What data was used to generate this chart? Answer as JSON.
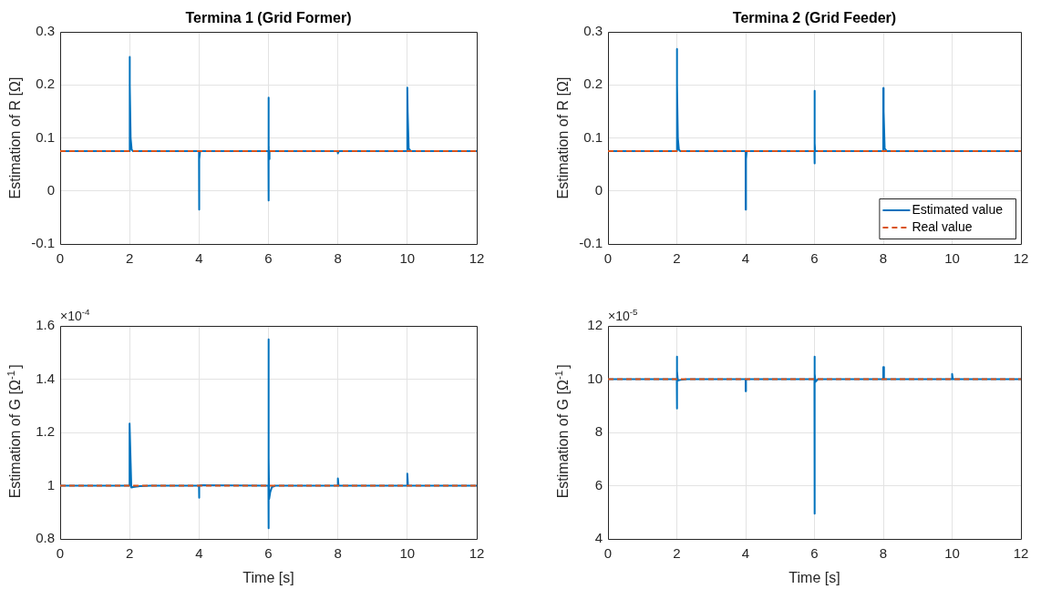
{
  "chart_data": [
    {
      "type": "line",
      "title": "Termina 1 (Grid Former)",
      "ylabel": "Estimation of R [Ω]",
      "xlim": [
        0,
        12
      ],
      "xticks": [
        0,
        2,
        4,
        6,
        8,
        10,
        12
      ],
      "ylim": [
        -0.1,
        0.3
      ],
      "yticks": [
        -0.1,
        0,
        0.1,
        0.2,
        0.3
      ],
      "grid": true,
      "legend": false,
      "marker": "none",
      "series": [
        {
          "color": "#0072bd",
          "line_style": "solid",
          "x": [
            0,
            1.999,
            2.0,
            2.01,
            2.03,
            2.06,
            2.1,
            3.999,
            4.0,
            4.01,
            4.03,
            5.999,
            6.0,
            6.005,
            6.01,
            6.02,
            6.03,
            6.06,
            7.99,
            8.0,
            8.03,
            9.999,
            10.0,
            10.01,
            10.04,
            10.1,
            12
          ],
          "values": [
            0.075,
            0.075,
            0.253,
            0.2,
            0.1,
            0.078,
            0.075,
            0.075,
            -0.035,
            0.06,
            0.075,
            0.075,
            0.176,
            -0.018,
            0.083,
            0.06,
            0.075,
            0.075,
            0.075,
            0.071,
            0.075,
            0.075,
            0.195,
            0.15,
            0.08,
            0.075,
            0.075
          ]
        },
        {
          "color": "#d95319",
          "line_style": "dashed",
          "x": [
            0,
            12
          ],
          "values": [
            0.075,
            0.075
          ]
        }
      ]
    },
    {
      "type": "line",
      "title": "Termina 2 (Grid Feeder)",
      "ylabel": "Estimation of R [Ω]",
      "xlim": [
        0,
        12
      ],
      "xticks": [
        0,
        2,
        4,
        6,
        8,
        10,
        12
      ],
      "ylim": [
        -0.1,
        0.3
      ],
      "yticks": [
        -0.1,
        0,
        0.1,
        0.2,
        0.3
      ],
      "grid": true,
      "legend": "bottom right",
      "marker": "none",
      "series": [
        {
          "name": "Estimated value",
          "color": "#0072bd",
          "line_style": "solid",
          "x": [
            0,
            1.999,
            2.0,
            2.01,
            2.03,
            2.06,
            2.1,
            3.999,
            4.0,
            4.01,
            4.03,
            5.999,
            6.0,
            6.005,
            6.01,
            6.02,
            6.05,
            7.999,
            8.0,
            8.01,
            8.04,
            8.1,
            12
          ],
          "values": [
            0.075,
            0.075,
            0.268,
            0.2,
            0.1,
            0.078,
            0.075,
            0.075,
            -0.035,
            0.06,
            0.075,
            0.075,
            0.189,
            0.052,
            0.09,
            0.075,
            0.075,
            0.075,
            0.194,
            0.15,
            0.08,
            0.075,
            0.075
          ]
        },
        {
          "name": "Real value",
          "color": "#d95319",
          "line_style": "dashed",
          "x": [
            0,
            12
          ],
          "values": [
            0.075,
            0.075
          ]
        }
      ]
    },
    {
      "type": "line",
      "ylabel": "Estimation of G [Ω$^{-1}$]",
      "xlabel": "Time [s]",
      "annotations": [
        "×10$^{-4}$"
      ],
      "xlim": [
        0,
        12
      ],
      "xticks": [
        0,
        2,
        4,
        6,
        8,
        10,
        12
      ],
      "ylim": [
        0.8,
        1.6
      ],
      "yticks": [
        0.8,
        1,
        1.2,
        1.4,
        1.6
      ],
      "grid": true,
      "legend": false,
      "marker": "none",
      "series": [
        {
          "color": "#0072bd",
          "line_style": "solid",
          "x": [
            0,
            1.999,
            2.0,
            2.05,
            2.1,
            2.3,
            2.6,
            3.999,
            4.0,
            4.01,
            4.05,
            5.999,
            6.0,
            6.005,
            6.01,
            6.02,
            6.05,
            6.1,
            6.2,
            7.999,
            8.0,
            8.02,
            9.999,
            10.0,
            10.02,
            12
          ],
          "values": [
            1,
            1,
            1.233,
            0.993,
            0.995,
            0.998,
            1,
            1,
            0.955,
            0.998,
            1.002,
            1,
            1.55,
            0.84,
            1.105,
            0.95,
            0.975,
            0.995,
            1,
            1,
            1.027,
            1,
            1,
            1.045,
            1,
            1
          ]
        },
        {
          "color": "#d95319",
          "line_style": "dashed",
          "x": [
            0,
            12
          ],
          "values": [
            1,
            1
          ]
        }
      ]
    },
    {
      "type": "line",
      "ylabel": "Estimation of G [Ω$^{-1}$]",
      "xlabel": "Time [s]",
      "annotations": [
        "×10$^{-5}$"
      ],
      "xlim": [
        0,
        12
      ],
      "xticks": [
        0,
        2,
        4,
        6,
        8,
        10,
        12
      ],
      "ylim": [
        4,
        12
      ],
      "yticks": [
        4,
        6,
        8,
        10,
        12
      ],
      "grid": true,
      "legend": false,
      "marker": "none",
      "series": [
        {
          "color": "#0072bd",
          "line_style": "solid",
          "x": [
            0,
            1.999,
            2.0,
            2.005,
            2.01,
            2.03,
            2.1,
            2.3,
            3.999,
            4.0,
            4.01,
            4.05,
            5.999,
            6.0,
            6.005,
            6.01,
            6.03,
            6.1,
            7.999,
            8.0,
            8.02,
            9.999,
            10.0,
            10.02,
            12
          ],
          "values": [
            10,
            10,
            10.85,
            8.9,
            10.3,
            9.95,
            9.97,
            10,
            10,
            9.55,
            9.98,
            10,
            10,
            10.85,
            4.95,
            10.2,
            9.9,
            10,
            10,
            10.45,
            10,
            10,
            10.2,
            10,
            10
          ]
        },
        {
          "color": "#d95319",
          "line_style": "dashed",
          "x": [
            0,
            12
          ],
          "values": [
            10,
            10
          ]
        }
      ]
    }
  ]
}
